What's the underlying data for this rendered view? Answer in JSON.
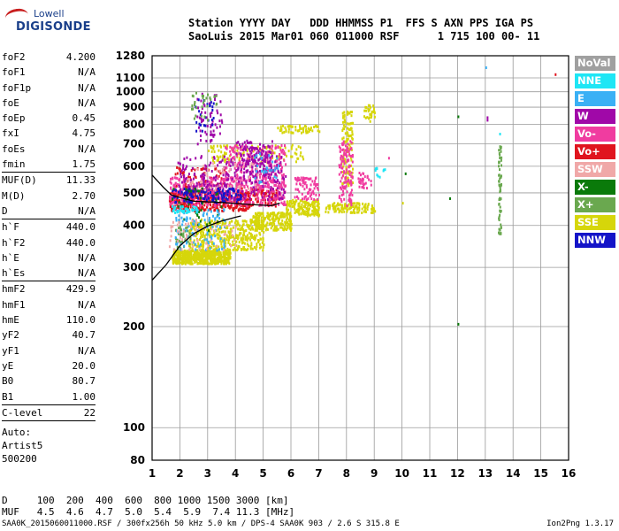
{
  "logo": {
    "line1": "Lowell",
    "line2": "DIGISONDE"
  },
  "header": {
    "line1": "Station YYYY DAY   DDD HHMMSS P1  FFS S AXN PPS IGA PS",
    "line2": "SaoLuis 2015 Mar01 060 011000 RSF      1 715 100 00- 11"
  },
  "params": [
    {
      "label": "foF2",
      "value": "4.200"
    },
    {
      "label": "foF1",
      "value": "N/A"
    },
    {
      "label": "foF1p",
      "value": "N/A"
    },
    {
      "label": "foE",
      "value": "N/A"
    },
    {
      "label": "foEp",
      "value": "0.45"
    },
    {
      "label": "fxI",
      "value": "4.75"
    },
    {
      "label": "foEs",
      "value": "N/A"
    },
    {
      "label": "fmin",
      "value": "1.75"
    },
    {
      "sep": true
    },
    {
      "label": "MUF(D)",
      "value": "11.33"
    },
    {
      "label": "M(D)",
      "value": "2.70"
    },
    {
      "label": "D",
      "value": "N/A"
    },
    {
      "sep": true
    },
    {
      "label": "h`F",
      "value": "440.0"
    },
    {
      "label": "h`F2",
      "value": "440.0"
    },
    {
      "label": "h`E",
      "value": "N/A"
    },
    {
      "label": "h`Es",
      "value": "N/A"
    },
    {
      "sep": true
    },
    {
      "label": "hmF2",
      "value": "429.9"
    },
    {
      "label": "hmF1",
      "value": "N/A"
    },
    {
      "label": "hmE",
      "value": "110.0"
    },
    {
      "label": "yF2",
      "value": "40.7"
    },
    {
      "label": "yF1",
      "value": "N/A"
    },
    {
      "label": "yE",
      "value": "20.0"
    },
    {
      "label": "B0",
      "value": "80.7"
    },
    {
      "label": "B1",
      "value": "1.00"
    },
    {
      "sep": true
    },
    {
      "label": "C-level",
      "value": "22"
    },
    {
      "sep": true
    }
  ],
  "auto": {
    "line1": "Auto:",
    "line2": "Artist5",
    "line3": "500200"
  },
  "dmuf": {
    "line1": "D     100  200  400  600  800 1000 1500 3000 [km]",
    "line2": "MUF   4.5  4.6  4.7  5.0  5.4  5.9  7.4 11.3 [MHz]"
  },
  "footer": {
    "left": "SAA0K_2015060011000.RSF / 300fx256h 50 kHz 5.0 km / DPS-4 SAA0K 903 / 2.6 S 315.8 E",
    "right": "Ion2Png 1.3.17"
  },
  "legend": [
    {
      "label": "NoVal",
      "color": "#a0a0a0"
    },
    {
      "label": "NNE",
      "color": "#1ee6f5"
    },
    {
      "label": "E",
      "color": "#3ab0f5"
    },
    {
      "label": "W",
      "color": "#a008a8"
    },
    {
      "label": "Vo-",
      "color": "#f03ca0"
    },
    {
      "label": "Vo+",
      "color": "#e0141e"
    },
    {
      "label": "SSW",
      "color": "#f0a8a8"
    },
    {
      "label": "X-",
      "color": "#0a7a0a"
    },
    {
      "label": "X+",
      "color": "#6aa84f"
    },
    {
      "label": "SSE",
      "color": "#d6d60a"
    },
    {
      "label": "NNW",
      "color": "#1414c8"
    }
  ],
  "chart_data": {
    "type": "scatter",
    "title": "",
    "xlabel": "",
    "ylabel": "",
    "xlim": [
      1,
      16
    ],
    "ylim": [
      80,
      1280
    ],
    "yscale": "log",
    "x_ticks": [
      1,
      2,
      3,
      4,
      5,
      6,
      7,
      8,
      9,
      10,
      11,
      12,
      13,
      14,
      15,
      16
    ],
    "y_ticks": [
      80,
      100,
      200,
      300,
      400,
      500,
      600,
      700,
      800,
      900,
      1000,
      1100,
      1280
    ],
    "grid": true,
    "legend_placement": "right",
    "clusters": [
      {
        "name": "SSE",
        "color": "#d6d60a",
        "regions": [
          [
            1.7,
            3.8,
            310,
            340,
            600
          ],
          [
            2.3,
            5.0,
            340,
            420,
            420
          ],
          [
            4.6,
            6.0,
            390,
            440,
            200
          ],
          [
            5.8,
            7.0,
            430,
            480,
            160
          ],
          [
            7.2,
            9.0,
            440,
            470,
            120
          ],
          [
            3.0,
            6.5,
            620,
            700,
            120
          ],
          [
            5.5,
            7.0,
            760,
            800,
            60
          ],
          [
            7.8,
            8.2,
            520,
            880,
            120
          ],
          [
            8.6,
            9.0,
            820,
            920,
            30
          ]
        ]
      },
      {
        "name": "Vo+",
        "color": "#e0141e",
        "regions": [
          [
            1.6,
            4.5,
            445,
            510,
            420
          ],
          [
            4.0,
            5.5,
            460,
            520,
            120
          ],
          [
            1.8,
            3.6,
            500,
            600,
            80
          ]
        ]
      },
      {
        "name": "Vo-",
        "color": "#f03ca0",
        "regions": [
          [
            1.6,
            5.8,
            460,
            560,
            380
          ],
          [
            3.6,
            5.8,
            520,
            700,
            220
          ],
          [
            6.1,
            7.0,
            480,
            560,
            80
          ],
          [
            7.7,
            8.2,
            460,
            720,
            120
          ],
          [
            8.4,
            8.9,
            520,
            580,
            30
          ]
        ]
      },
      {
        "name": "W",
        "color": "#a008a8",
        "regions": [
          [
            1.9,
            5.8,
            480,
            650,
            280
          ],
          [
            2.6,
            3.5,
            700,
            1000,
            60
          ],
          [
            4.0,
            5.3,
            560,
            720,
            120
          ]
        ]
      },
      {
        "name": "NNW",
        "color": "#1414c8",
        "regions": [
          [
            1.7,
            4.2,
            470,
            520,
            120
          ],
          [
            2.5,
            3.2,
            760,
            980,
            25
          ]
        ]
      },
      {
        "name": "X+",
        "color": "#6aa84f",
        "regions": [
          [
            13.45,
            13.55,
            380,
            700,
            60
          ],
          [
            2.4,
            3.3,
            820,
            1000,
            30
          ],
          [
            1.8,
            2.4,
            340,
            400,
            40
          ]
        ]
      },
      {
        "name": "X-",
        "color": "#0a7a0a",
        "regions": [
          [
            1.7,
            3.5,
            380,
            520,
            40
          ]
        ]
      },
      {
        "name": "E",
        "color": "#3ab0f5",
        "regions": [
          [
            1.8,
            3.6,
            340,
            450,
            100
          ],
          [
            4.6,
            5.6,
            540,
            660,
            30
          ]
        ]
      },
      {
        "name": "NNE",
        "color": "#1ee6f5",
        "regions": [
          [
            1.7,
            2.6,
            440,
            460,
            40
          ],
          [
            9.0,
            9.4,
            560,
            600,
            10
          ]
        ]
      },
      {
        "name": "SSW",
        "color": "#f0a8a8",
        "regions": [
          [
            1.6,
            4.0,
            340,
            420,
            60
          ],
          [
            2.0,
            4.8,
            500,
            620,
            50
          ]
        ]
      }
    ],
    "points": [
      {
        "x": 12.0,
        "y": 205,
        "color": "#0a7a0a"
      },
      {
        "x": 12.0,
        "y": 850,
        "color": "#0a7a0a"
      },
      {
        "x": 10.1,
        "y": 575,
        "color": "#0a7a0a"
      },
      {
        "x": 13.0,
        "y": 1190,
        "color": "#3ab0f5"
      },
      {
        "x": 13.05,
        "y": 830,
        "color": "#a008a8"
      },
      {
        "x": 13.05,
        "y": 845,
        "color": "#a008a8"
      },
      {
        "x": 15.5,
        "y": 1135,
        "color": "#e0141e"
      },
      {
        "x": 13.5,
        "y": 755,
        "color": "#1ee6f5"
      },
      {
        "x": 11.7,
        "y": 485,
        "color": "#0a7a0a"
      },
      {
        "x": 10.0,
        "y": 470,
        "color": "#d6d60a"
      },
      {
        "x": 9.5,
        "y": 640,
        "color": "#f03ca0"
      }
    ],
    "profile_curve": {
      "x": [
        1.0,
        1.5,
        2.0,
        2.5,
        3.0,
        3.5,
        4.0,
        4.2
      ],
      "y": [
        275,
        305,
        348,
        378,
        398,
        412,
        423,
        427
      ]
    },
    "trace_curve": {
      "x": [
        1.0,
        1.4,
        1.7,
        2.5,
        3.5,
        4.5,
        5.3,
        5.6
      ],
      "y": [
        565,
        520,
        492,
        472,
        468,
        462,
        458,
        466
      ]
    }
  }
}
